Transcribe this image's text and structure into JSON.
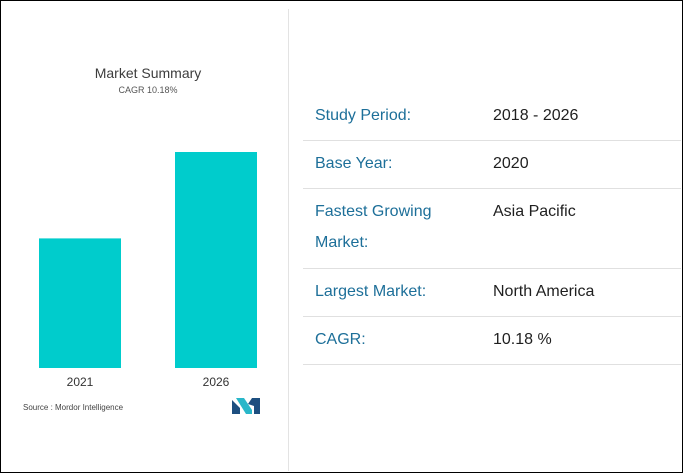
{
  "chart_data": {
    "type": "bar",
    "title": "Market Summary",
    "subtitle": "CAGR 10.18%",
    "categories": [
      "2021",
      "2026"
    ],
    "values": [
      0.6,
      1.0
    ],
    "bar_color": "#00cccc",
    "xlabel": "",
    "ylabel": "",
    "ylim": [
      0,
      1
    ]
  },
  "source": "Source : Mordor Intelligence",
  "logo_icon": "mordor-intelligence-logo-icon",
  "summary": {
    "rows": [
      {
        "label": "Study Period:",
        "value": "2018 - 2026"
      },
      {
        "label": "Base Year:",
        "value": "2020"
      },
      {
        "label": "Fastest Growing Market:",
        "value": "Asia Pacific"
      },
      {
        "label": "Largest Market:",
        "value": "North America"
      },
      {
        "label": "CAGR:",
        "value": "10.18 %"
      }
    ]
  },
  "colors": {
    "label": "#1d6f99",
    "value": "#1f1f1f",
    "bar": "#00cccc",
    "logo_dark": "#1d4f80",
    "logo_light": "#29b7c9"
  }
}
